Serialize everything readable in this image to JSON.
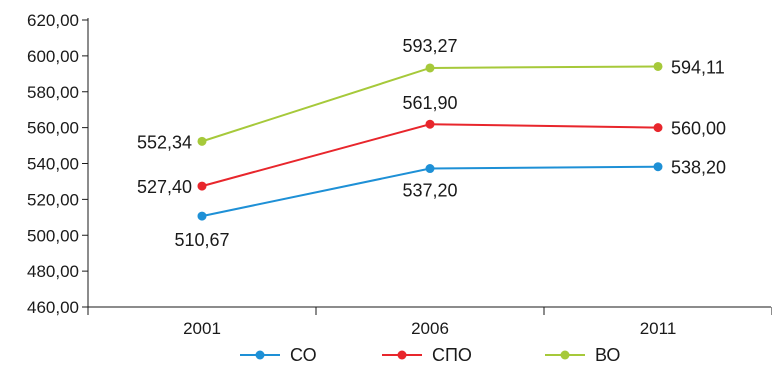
{
  "chart_data": {
    "type": "line",
    "title": "",
    "xlabel": "",
    "ylabel": "",
    "categories": [
      "2001",
      "2006",
      "2011"
    ],
    "ylim": [
      460,
      620
    ],
    "ytick_step": 20,
    "yticks": [
      "460,00",
      "480,00",
      "500,00",
      "520,00",
      "540,00",
      "560,00",
      "580,00",
      "600,00",
      "620,00"
    ],
    "grid": false,
    "legend_position": "bottom",
    "series": [
      {
        "name": "СО",
        "color": "#1e90d6",
        "values": [
          510.67,
          537.2,
          538.2
        ],
        "labels": [
          "510,67",
          "537,20",
          "538,20"
        ]
      },
      {
        "name": "СПО",
        "color": "#e8262c",
        "values": [
          527.4,
          561.9,
          560.0
        ],
        "labels": [
          "527,40",
          "561,90",
          "560,00"
        ]
      },
      {
        "name": "ВО",
        "color": "#a6c93a",
        "values": [
          552.34,
          593.27,
          594.11
        ],
        "labels": [
          "552,34",
          "593,27",
          "594,11"
        ]
      }
    ]
  }
}
